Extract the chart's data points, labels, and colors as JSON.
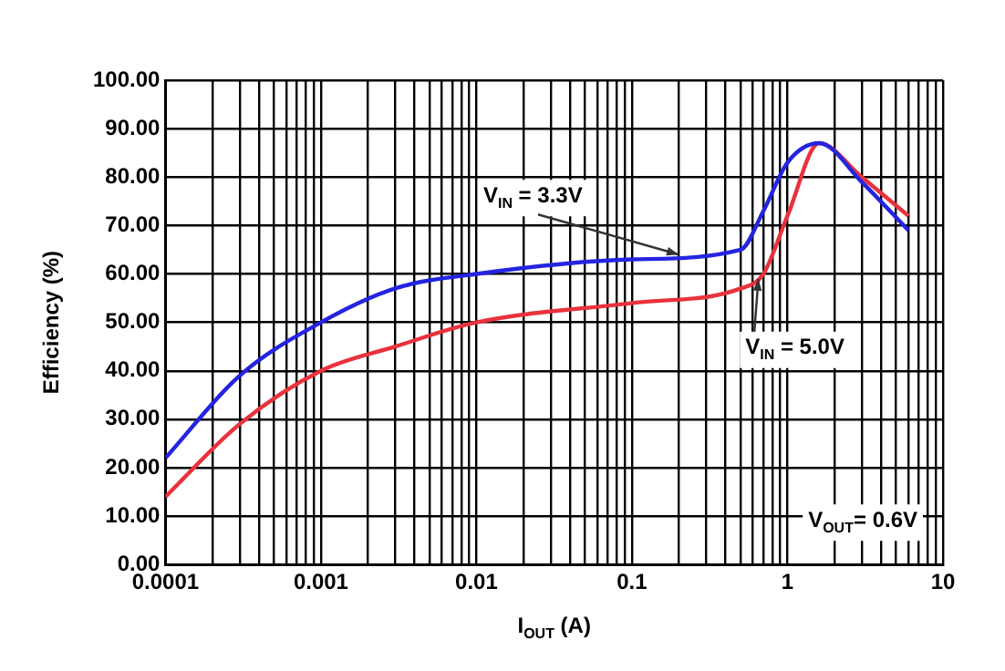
{
  "chart_data": {
    "type": "line",
    "xlabel": "I$_{OUT}$ (A)",
    "ylabel": "Efficiency (%)",
    "log": "x",
    "xlim": [
      0.0001,
      10
    ],
    "xticks": [
      0.0001,
      {
        "value": 0.0002,
        "label": null
      },
      {
        "value": 0.0003,
        "label": null
      },
      {
        "value": 0.0004,
        "label": null
      },
      {
        "value": 0.0005,
        "label": null
      },
      {
        "value": 0.0006,
        "label": null
      },
      {
        "value": 0.0007,
        "label": null
      },
      {
        "value": 0.0008,
        "label": null
      },
      {
        "value": 0.0009,
        "label": null
      },
      0.001,
      {
        "value": 0.002,
        "label": null
      },
      {
        "value": 0.003,
        "label": null
      },
      {
        "value": 0.004,
        "label": null
      },
      {
        "value": 0.005,
        "label": null
      },
      {
        "value": 0.006,
        "label": null
      },
      {
        "value": 0.007,
        "label": null
      },
      {
        "value": 0.008,
        "label": null
      },
      {
        "value": 0.009,
        "label": null
      },
      0.01,
      {
        "value": 0.02,
        "label": null
      },
      {
        "value": 0.03,
        "label": null
      },
      {
        "value": 0.04,
        "label": null
      },
      {
        "value": 0.05,
        "label": null
      },
      {
        "value": 0.06,
        "label": null
      },
      {
        "value": 0.07,
        "label": null
      },
      {
        "value": 0.08,
        "label": null
      },
      {
        "value": 0.09,
        "label": null
      },
      0.1,
      {
        "value": 0.2,
        "label": null
      },
      {
        "value": 0.3,
        "label": null
      },
      {
        "value": 0.4,
        "label": null
      },
      {
        "value": 0.5,
        "label": null
      },
      {
        "value": 0.6,
        "label": null
      },
      {
        "value": 0.7,
        "label": null
      },
      {
        "value": 0.8,
        "label": null
      },
      {
        "value": 0.9,
        "label": null
      },
      1,
      {
        "value": 2,
        "label": null
      },
      {
        "value": 3,
        "label": null
      },
      {
        "value": 4,
        "label": null
      },
      {
        "value": 5,
        "label": null
      },
      {
        "value": 6,
        "label": null
      },
      {
        "value": 7,
        "label": null
      },
      {
        "value": 8,
        "label": null
      },
      {
        "value": 9,
        "label": null
      },
      10
    ],
    "ylim": [
      0,
      100
    ],
    "yticks": [
      {
        "value": 0,
        "label": "0.00"
      },
      {
        "value": 10,
        "label": "10.00"
      },
      {
        "value": 20,
        "label": "20.00"
      },
      {
        "value": 30,
        "label": "30.00"
      },
      {
        "value": 40,
        "label": "40.00"
      },
      {
        "value": 50,
        "label": "50.00"
      },
      {
        "value": 60,
        "label": "60.00"
      },
      {
        "value": 70,
        "label": "70.00"
      },
      {
        "value": 80,
        "label": "80.00"
      },
      {
        "value": 90,
        "label": "90.00"
      },
      {
        "value": 100,
        "label": "100.00"
      }
    ],
    "grid": true,
    "legend": false,
    "marker": "none",
    "line_style": "solid",
    "series": [
      {
        "color": "#2424e0",
        "x": [
          0.0001,
          0.0003,
          0.001,
          0.003,
          0.01,
          0.1,
          0.5,
          0.7,
          1,
          1.6,
          3,
          6
        ],
        "values": [
          22,
          39,
          50,
          57,
          60,
          63,
          65,
          73,
          83,
          87,
          79,
          69
        ]
      },
      {
        "color": "#e8323c",
        "x": [
          0.0001,
          0.0003,
          0.001,
          0.003,
          0.01,
          0.1,
          0.5,
          0.7,
          1,
          1.6,
          3,
          6
        ],
        "values": [
          14,
          29,
          40,
          45,
          50,
          54,
          57,
          60,
          72,
          87,
          80,
          72
        ]
      }
    ],
    "annotations": [
      {
        "text": "V$_{IN}$ = 3.3V",
        "x": 0.2,
        "y": 64
      },
      {
        "text": "V$_{IN}$ = 5.0V",
        "x": 0.65,
        "y": 59
      },
      "V$_{OUT}$= 0.6V"
    ]
  }
}
